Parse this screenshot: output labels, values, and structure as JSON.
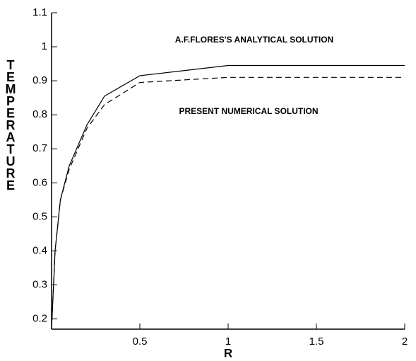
{
  "chart_data": {
    "type": "line",
    "x_label": "R",
    "y_label": "TEMPERATURE",
    "xlim": [
      0,
      2
    ],
    "xticks": [
      0.5,
      1,
      1.5,
      2
    ],
    "ylim": [
      0.17,
      1.1
    ],
    "yticks": [
      0.2,
      0.3,
      0.4,
      0.5,
      0.6,
      0.7,
      0.8,
      0.9,
      1,
      1.1
    ],
    "series": [
      {
        "name": "A.F.FLORES'S ANALYTICAL SOLUTION",
        "color": "#000000",
        "dashed": false,
        "x": [
          0,
          0.02,
          0.05,
          0.1,
          0.2,
          0.3,
          0.5,
          1,
          2
        ],
        "values": [
          0.17,
          0.4,
          0.55,
          0.65,
          0.77,
          0.855,
          0.915,
          0.945,
          0.945
        ]
      },
      {
        "name": "PRESENT NUMERICAL SOLUTION",
        "color": "#000000",
        "dashed": true,
        "x": [
          0,
          0.02,
          0.05,
          0.1,
          0.2,
          0.3,
          0.5,
          1,
          2
        ],
        "values": [
          0.17,
          0.4,
          0.55,
          0.64,
          0.76,
          0.83,
          0.895,
          0.91,
          0.91
        ]
      }
    ]
  }
}
